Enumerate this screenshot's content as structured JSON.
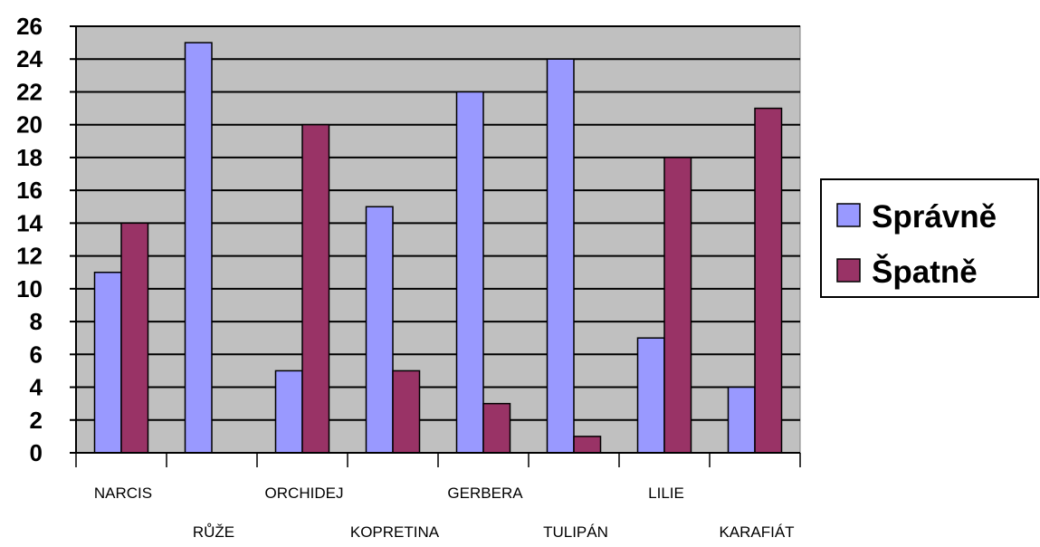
{
  "chart_data": {
    "type": "bar",
    "categories": [
      "NARCIS",
      "RŮŽE",
      "ORCHIDEJ",
      "KOPRETINA",
      "GERBERA",
      "TULIPÁN",
      "LILIE",
      "KARAFIÁT"
    ],
    "series": [
      {
        "name": "Správně",
        "values": [
          11,
          25,
          5,
          15,
          22,
          24,
          7,
          4
        ],
        "color": "#9999ff"
      },
      {
        "name": "Špatně",
        "values": [
          14,
          0,
          20,
          5,
          3,
          1,
          18,
          21
        ],
        "color": "#993366"
      }
    ],
    "ylim": [
      0,
      26
    ],
    "ytick_step": 2,
    "grid": true,
    "plot_background": "#c0c0c0",
    "legend_position": "right",
    "title": "",
    "xlabel": "",
    "ylabel": ""
  }
}
